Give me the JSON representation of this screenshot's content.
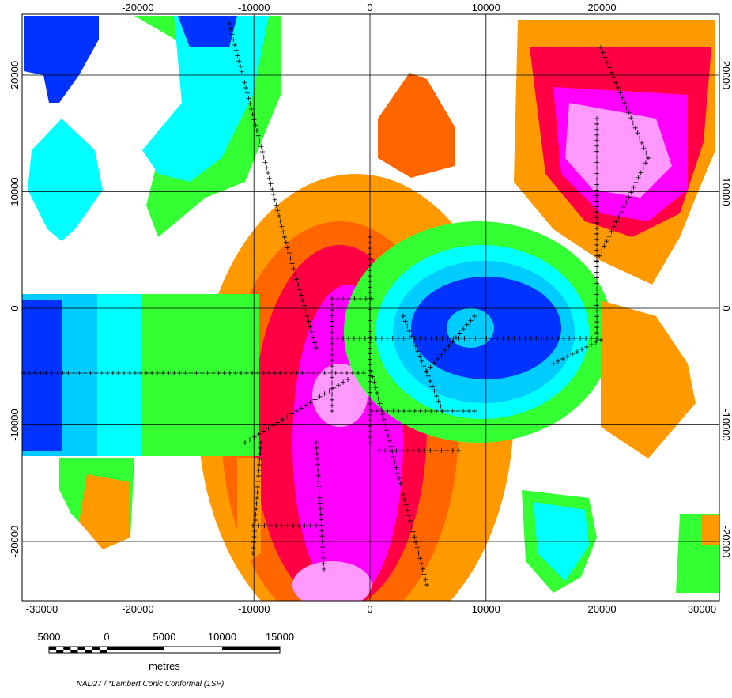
{
  "map": {
    "top_ticks": [
      -20000,
      -10000,
      0,
      10000,
      20000
    ],
    "bottom_ticks": [
      -30000,
      -20000,
      -10000,
      0,
      10000,
      20000,
      30000
    ],
    "left_ticks": [
      20000,
      10000,
      0,
      -10000,
      -20000
    ],
    "right_ticks": [
      20000,
      10000,
      0,
      -10000,
      -20000
    ],
    "scale_bar": {
      "labels": [
        5000,
        0,
        5000,
        10000,
        15000
      ],
      "unit": "metres"
    },
    "projection": "NAD27 / *Lambert Conic Conformal (1SP)"
  }
}
